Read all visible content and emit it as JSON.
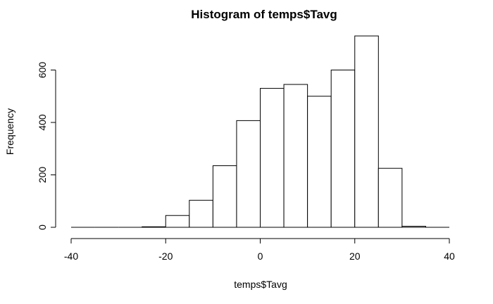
{
  "chart_data": {
    "type": "bar",
    "title": "Histogram of temps$Tavg",
    "xlabel": "temps$Tavg",
    "ylabel": "Frequency",
    "xlim": [
      -40,
      40
    ],
    "ylim": [
      0,
      750
    ],
    "x_ticks": [
      -40,
      -20,
      0,
      20,
      40
    ],
    "y_ticks": [
      0,
      200,
      400,
      600
    ],
    "bins": [
      {
        "from": -40,
        "to": -35,
        "count": 0
      },
      {
        "from": -35,
        "to": -30,
        "count": 0
      },
      {
        "from": -30,
        "to": -25,
        "count": 0
      },
      {
        "from": -25,
        "to": -20,
        "count": 2
      },
      {
        "from": -20,
        "to": -15,
        "count": 45
      },
      {
        "from": -15,
        "to": -10,
        "count": 103
      },
      {
        "from": -10,
        "to": -5,
        "count": 235
      },
      {
        "from": -5,
        "to": 0,
        "count": 407
      },
      {
        "from": 0,
        "to": 5,
        "count": 530
      },
      {
        "from": 5,
        "to": 10,
        "count": 545
      },
      {
        "from": 10,
        "to": 15,
        "count": 500
      },
      {
        "from": 15,
        "to": 20,
        "count": 600
      },
      {
        "from": 20,
        "to": 25,
        "count": 730
      },
      {
        "from": 25,
        "to": 30,
        "count": 225
      },
      {
        "from": 30,
        "to": 35,
        "count": 4
      },
      {
        "from": 35,
        "to": 40,
        "count": 0
      }
    ],
    "grid": false,
    "colors": {
      "bar_fill": "#ffffff",
      "bar_stroke": "#000000"
    }
  }
}
